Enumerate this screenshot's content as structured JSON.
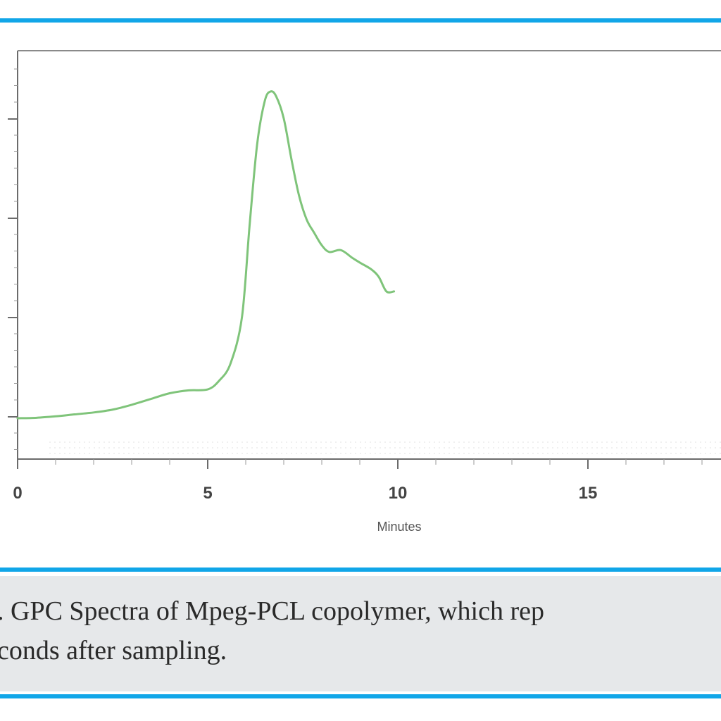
{
  "colors": {
    "rule": "#11a6e8",
    "line": "#7fc47a",
    "axis": "#6b6b6b",
    "grid": "#e2e2e2",
    "tick_label": "#444444",
    "caption_bg": "#e6e8ea"
  },
  "caption": {
    "line1": ". GPC Spectra of Mpeg-PCL copolymer, which rep",
    "line2": "conds after sampling."
  },
  "chart_data": {
    "type": "line",
    "title": "",
    "xlabel": "Minutes",
    "ylabel": "",
    "xlim": [
      0,
      18.5
    ],
    "x_ticks": [
      "0",
      "5",
      "10",
      "15"
    ],
    "y_tick_count": 4,
    "grid": "x-dotted",
    "legend": "none",
    "series": [
      {
        "x": [
          0,
          0.5,
          1.0,
          1.5,
          2.0,
          2.5,
          3.0,
          3.5,
          4.0,
          4.5,
          5.0,
          5.3,
          5.6,
          5.9,
          6.1,
          6.3,
          6.5,
          6.65,
          6.8,
          7.0,
          7.2,
          7.4,
          7.6,
          7.8,
          8.0,
          8.2,
          8.5,
          8.8,
          9.0,
          9.3,
          9.5,
          9.7,
          9.9
        ],
        "y": [
          0,
          0.005,
          0.02,
          0.04,
          0.06,
          0.09,
          0.14,
          0.2,
          0.26,
          0.29,
          0.3,
          0.39,
          0.57,
          1.05,
          2.0,
          2.85,
          3.3,
          3.4,
          3.35,
          3.12,
          2.7,
          2.32,
          2.07,
          1.93,
          1.8,
          1.73,
          1.75,
          1.67,
          1.62,
          1.55,
          1.47,
          1.32,
          1.32
        ]
      }
    ]
  }
}
